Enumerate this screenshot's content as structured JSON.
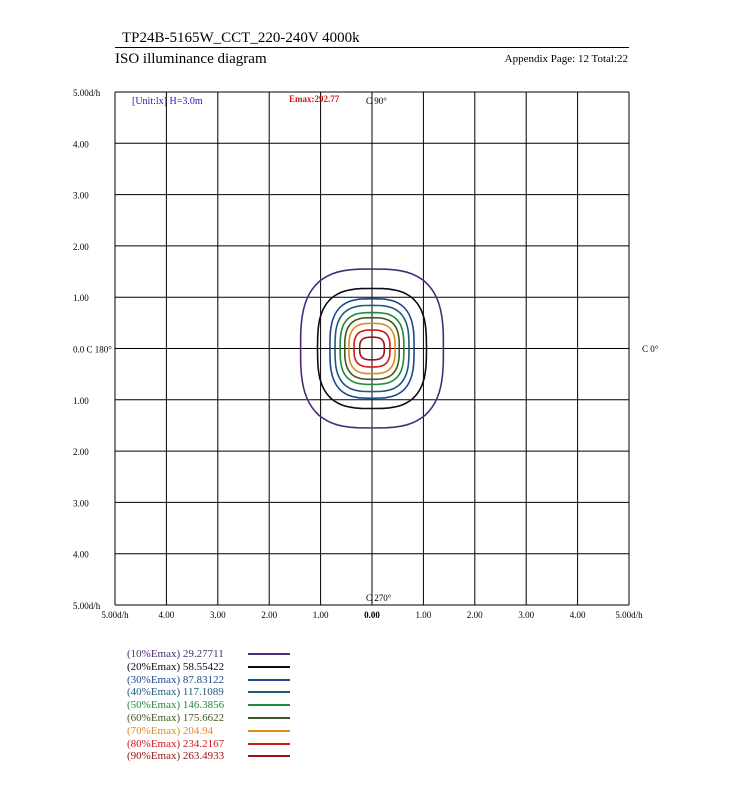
{
  "header": {
    "title": "TP24B-5165W_CCT_220-240V 4000k",
    "subtitle": "ISO illuminance diagram",
    "page": "Appendix Page: 12  Total:22"
  },
  "chart_data": {
    "type": "contour",
    "unit_label": "[Unit:lx]  H=3.0m",
    "emax_label": "Emax:292.77",
    "emax": 292.77,
    "c_labels": {
      "top": "C 90°",
      "bottom": "C 270°",
      "right": "C 0°"
    },
    "xlim": [
      -5,
      5
    ],
    "ylim": [
      -5,
      5
    ],
    "grid": true,
    "y_ticks": [
      "5.00d/h",
      "4.00",
      "3.00",
      "2.00",
      "1.00",
      "0.0 C 180°",
      "1.00",
      "2.00",
      "3.00",
      "4.00",
      "5.00d/h"
    ],
    "x_ticks": [
      "5.00d/h",
      "4.00",
      "3.00",
      "2.00",
      "1.00",
      "0.00",
      "1.00",
      "2.00",
      "3.00",
      "4.00",
      "5.00d/h"
    ],
    "series": [
      {
        "name": "(10%Emax) 29.27711",
        "color": "#4b2a78",
        "half_width": 1.39,
        "half_height": 1.55
      },
      {
        "name": "(20%Emax) 58.55422",
        "color": "#0a0a1a",
        "half_width": 1.06,
        "half_height": 1.17
      },
      {
        "name": "(30%Emax) 87.83122",
        "color": "#1c4a8c",
        "half_width": 0.82,
        "half_height": 0.97
      },
      {
        "name": "(40%Emax) 117.1089",
        "color": "#1f5a78",
        "half_width": 0.72,
        "half_height": 0.84
      },
      {
        "name": "(50%Emax) 146.3856",
        "color": "#1f8a3a",
        "half_width": 0.62,
        "half_height": 0.7
      },
      {
        "name": "(60%Emax) 175.6622",
        "color": "#3d5a1e",
        "half_width": 0.53,
        "half_height": 0.6
      },
      {
        "name": "(70%Emax) 204.94",
        "color": "#e08a1e",
        "half_width": 0.45,
        "half_height": 0.49
      },
      {
        "name": "(80%Emax) 234.2167",
        "color": "#d01818",
        "half_width": 0.35,
        "half_height": 0.36
      },
      {
        "name": "(90%Emax) 263.4933",
        "color": "#a01010",
        "half_width": 0.24,
        "half_height": 0.22
      }
    ]
  }
}
